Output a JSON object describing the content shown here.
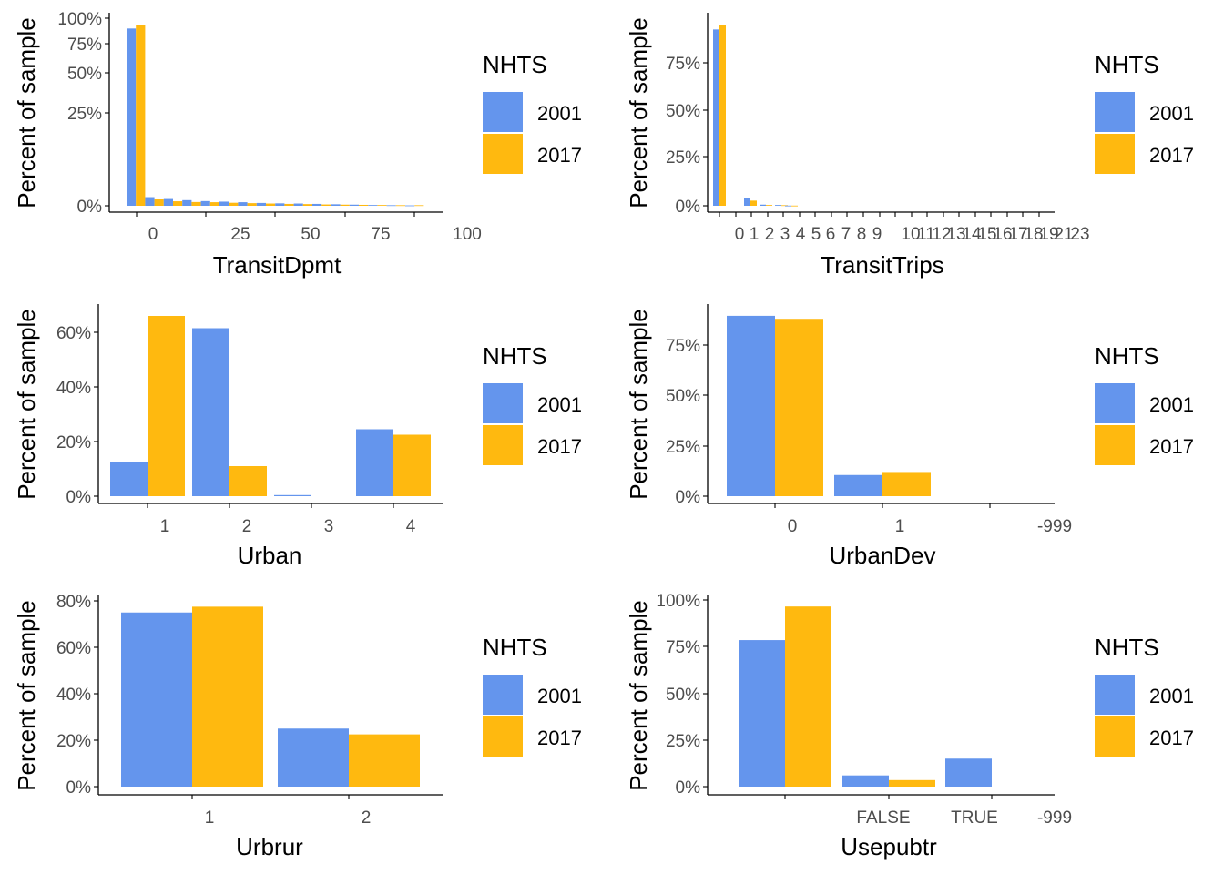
{
  "colors": {
    "2001": "#6495ED",
    "2017": "#FFB90F",
    "tick_text": "#4D4D4D",
    "axis": "#000000"
  },
  "chart_data": [
    {
      "type": "bar",
      "xlabel": "TransitDpmt",
      "ylabel": "Percent of sample",
      "y_tick_labels": [
        "0%",
        "25%",
        "50%",
        "75%",
        "100%"
      ],
      "x_tick_labels": [
        "0",
        "25",
        "50",
        "75",
        "100"
      ],
      "legend": {
        "title": "NHTS",
        "entries": [
          "2001",
          "2017"
        ],
        "position": "right"
      },
      "series": [
        {
          "name": "2001",
          "values": [
            94.5,
            4.6,
            3.6,
            3.0,
            2.5,
            2.2,
            1.9,
            1.5,
            1.3,
            1.2,
            1.0,
            0.8,
            0.6,
            0.4,
            0.3,
            0.2
          ]
        },
        {
          "name": "2017",
          "values": [
            96.3,
            3.4,
            2.4,
            2.0,
            1.9,
            1.6,
            1.4,
            1.2,
            1.0,
            0.9,
            0.7,
            0.6,
            0.5,
            0.4,
            0.3,
            0.3
          ]
        }
      ]
    },
    {
      "type": "bar",
      "xlabel": "TransitTrips",
      "ylabel": "Percent of sample",
      "y_tick_labels": [
        "0%",
        "25%",
        "50%",
        "75%"
      ],
      "x_tick_labels": [
        "0",
        "1",
        "2",
        "3",
        "4",
        "5",
        "6",
        "7",
        "8",
        "9",
        "10",
        "11",
        "12",
        "13",
        "14",
        "15",
        "16",
        "17",
        "18",
        "19",
        "21",
        "23"
      ],
      "legend": {
        "title": "NHTS",
        "entries": [
          "2001",
          "2017"
        ],
        "position": "right"
      },
      "series": [
        {
          "name": "2001",
          "values": [
            92.5,
            4.2,
            0.6,
            0.4,
            0.1
          ]
        },
        {
          "name": "2017",
          "values": [
            95.0,
            2.7,
            0.4,
            0.3,
            0.1
          ]
        }
      ]
    },
    {
      "type": "bar",
      "xlabel": "Urban",
      "ylabel": "Percent of sample",
      "categories": [
        "1",
        "2",
        "3",
        "4"
      ],
      "y_tick_labels": [
        "0%",
        "20%",
        "40%",
        "60%"
      ],
      "legend": {
        "title": "NHTS",
        "entries": [
          "2001",
          "2017"
        ],
        "position": "right"
      },
      "series": [
        {
          "name": "2001",
          "values": [
            12.5,
            61.5,
            0.4,
            24.5
          ]
        },
        {
          "name": "2017",
          "values": [
            66.0,
            11.0,
            0.0,
            22.5
          ]
        }
      ]
    },
    {
      "type": "bar",
      "xlabel": "UrbanDev",
      "ylabel": "Percent of sample",
      "categories": [
        "0",
        "1",
        "-999"
      ],
      "y_tick_labels": [
        "0%",
        "25%",
        "50%",
        "75%"
      ],
      "legend": {
        "title": "NHTS",
        "entries": [
          "2001",
          "2017"
        ],
        "position": "right"
      },
      "series": [
        {
          "name": "2001",
          "values": [
            89.5,
            10.5,
            0.0
          ]
        },
        {
          "name": "2017",
          "values": [
            88.0,
            12.0,
            0.0
          ]
        }
      ]
    },
    {
      "type": "bar",
      "xlabel": "Urbrur",
      "ylabel": "Percent of sample",
      "categories": [
        "1",
        "2"
      ],
      "y_tick_labels": [
        "0%",
        "20%",
        "40%",
        "60%",
        "80%"
      ],
      "legend": {
        "title": "NHTS",
        "entries": [
          "2001",
          "2017"
        ],
        "position": "right"
      },
      "series": [
        {
          "name": "2001",
          "values": [
            75.0,
            25.0
          ]
        },
        {
          "name": "2017",
          "values": [
            77.5,
            22.5
          ]
        }
      ]
    },
    {
      "type": "bar",
      "xlabel": "Usepubtr",
      "ylabel": "Percent of sample",
      "categories": [
        "",
        "FALSE",
        "TRUE",
        "-999"
      ],
      "y_tick_labels": [
        "0%",
        "25%",
        "50%",
        "75%",
        "100%"
      ],
      "legend": {
        "title": "NHTS",
        "entries": [
          "2001",
          "2017"
        ],
        "position": "right"
      },
      "series": [
        {
          "name": "2001",
          "values": [
            78.5,
            6.0,
            15.0,
            0.0
          ]
        },
        {
          "name": "2017",
          "values": [
            96.5,
            3.5,
            0.0,
            0.0
          ]
        }
      ]
    }
  ]
}
